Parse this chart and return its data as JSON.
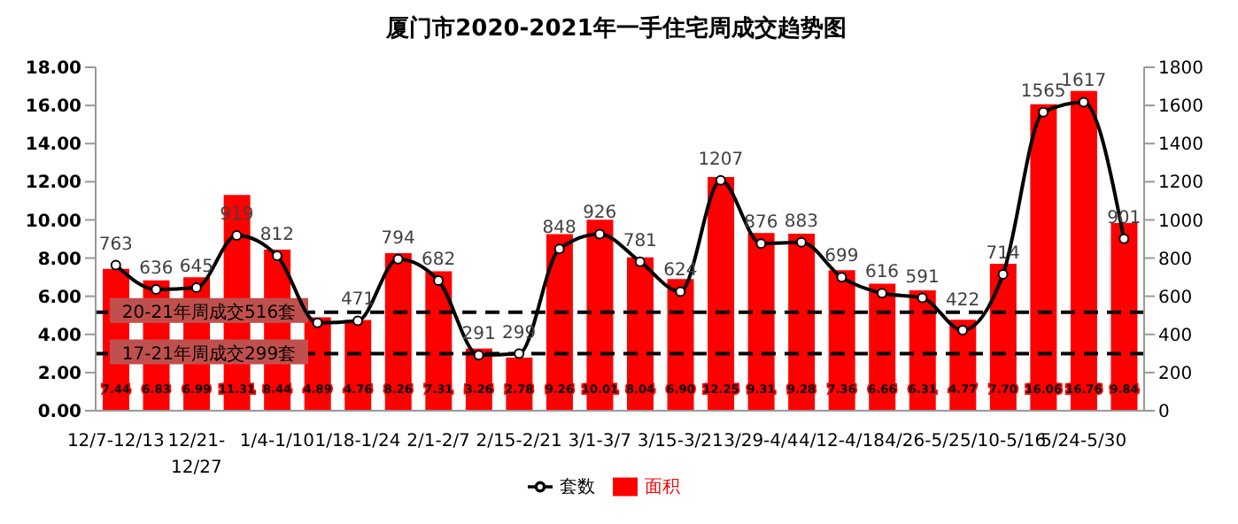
{
  "chart_data": {
    "type": "bar",
    "title": "厦门市2020-2021年一手住宅周成交趋势图",
    "categories": [
      "12/7-12/13",
      null,
      "12/21-12/27",
      null,
      "1/4-1/10",
      null,
      "1/18-1/24",
      null,
      "2/1-2/7",
      null,
      "2/15-2/21",
      null,
      "3/1-3/7",
      null,
      "3/15-3/21",
      null,
      "3/29-4/4",
      null,
      "4/12-4/18",
      null,
      "4/26-5/2",
      null,
      "5/10-5/16",
      null,
      "5/24-5/30",
      null
    ],
    "series": [
      {
        "name": "面积",
        "color": "#ff0000",
        "values": [
          7.44,
          6.83,
          6.99,
          11.31,
          8.44,
          4.89,
          4.76,
          8.26,
          7.31,
          3.26,
          2.78,
          9.26,
          10.01,
          8.04,
          6.9,
          12.25,
          9.31,
          9.28,
          7.36,
          6.66,
          6.31,
          4.77,
          7.7,
          16.06,
          16.76,
          9.84
        ],
        "value_labels": [
          "7.44",
          "6.83",
          "6.99",
          "11.31",
          "8.44",
          "4.89",
          "4.76",
          "8.26",
          "7.31",
          "3.26",
          "2.78",
          "9.26",
          "10.01",
          "8.04",
          "6.90",
          "12.25",
          "9.31",
          "9.28",
          "7.36",
          "6.66",
          "6.31",
          "4.77",
          "7.70",
          "16.06",
          "16.76",
          "9.84"
        ]
      },
      {
        "name": "套数",
        "type": "line",
        "axis": "y2",
        "color": "#000000",
        "marker": "circle",
        "line_style": "solid",
        "values": [
          763,
          636,
          645,
          919,
          812,
          460,
          471,
          794,
          682,
          291,
          299,
          848,
          926,
          781,
          624,
          1207,
          876,
          883,
          699,
          616,
          591,
          422,
          714,
          1565,
          1617,
          901
        ],
        "value_labels": [
          "763",
          "636",
          "645",
          "919",
          "812",
          null,
          "471",
          "794",
          "682",
          "291",
          "299",
          "848",
          "926",
          "781",
          "624",
          "1207",
          "876",
          "883",
          "699",
          "616",
          "591",
          "422",
          "714",
          "1565",
          "1617",
          "901"
        ]
      }
    ],
    "ylim": [
      0,
      18
    ],
    "yticks": [
      {
        "value": 0,
        "label": "0.00"
      },
      {
        "value": 2,
        "label": "2.00"
      },
      {
        "value": 4,
        "label": "4.00"
      },
      {
        "value": 6,
        "label": "6.00"
      },
      {
        "value": 8,
        "label": "8.00"
      },
      {
        "value": 10,
        "label": "10.00"
      },
      {
        "value": 12,
        "label": "12.00"
      },
      {
        "value": 14,
        "label": "14.00"
      },
      {
        "value": 16,
        "label": "16.00"
      },
      {
        "value": 18,
        "label": "18.00"
      }
    ],
    "y2lim": [
      0,
      1800
    ],
    "y2ticks": [
      0,
      200,
      400,
      600,
      800,
      1000,
      1200,
      1400,
      1600,
      1800
    ],
    "ref_lines": [
      {
        "axis": "y2",
        "value": 516,
        "label": "20-21年周成交516套",
        "color": "#000000",
        "line_style": "dashed"
      },
      {
        "axis": "y2",
        "value": 299,
        "label": "17-21年周成交299套",
        "color": "#000000",
        "line_style": "dashed"
      }
    ],
    "legend": "bottom"
  }
}
